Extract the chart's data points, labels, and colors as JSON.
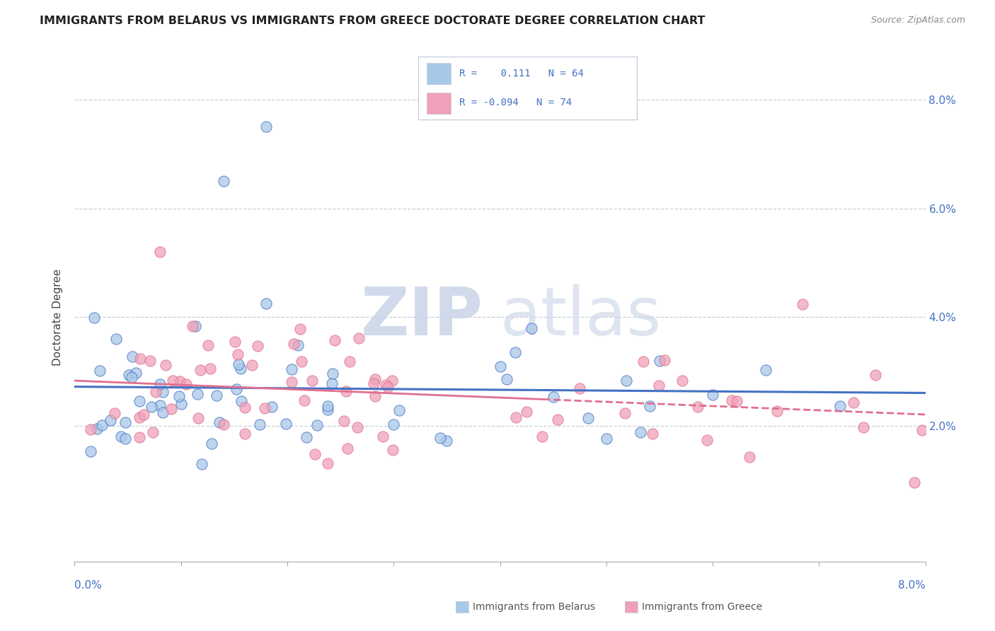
{
  "title": "IMMIGRANTS FROM BELARUS VS IMMIGRANTS FROM GREECE DOCTORATE DEGREE CORRELATION CHART",
  "source": "Source: ZipAtlas.com",
  "ylabel": "Doctorate Degree",
  "color_belarus": "#a8c8e8",
  "color_greece": "#f0a0b8",
  "line_color_belarus": "#4472c4",
  "line_color_greece": "#e07090",
  "background_color": "#ffffff",
  "watermark_zip": "ZIP",
  "watermark_atlas": "atlas",
  "xlim": [
    0.0,
    0.08
  ],
  "ylim": [
    -0.005,
    0.085
  ],
  "grid_color": "#c8d0dc",
  "legend_border_color": "#c0c8d8",
  "title_color": "#222222",
  "source_color": "#888888",
  "axis_color": "#aaaaaa",
  "tick_label_color": "#4472c4",
  "bottom_label_color": "#555555"
}
